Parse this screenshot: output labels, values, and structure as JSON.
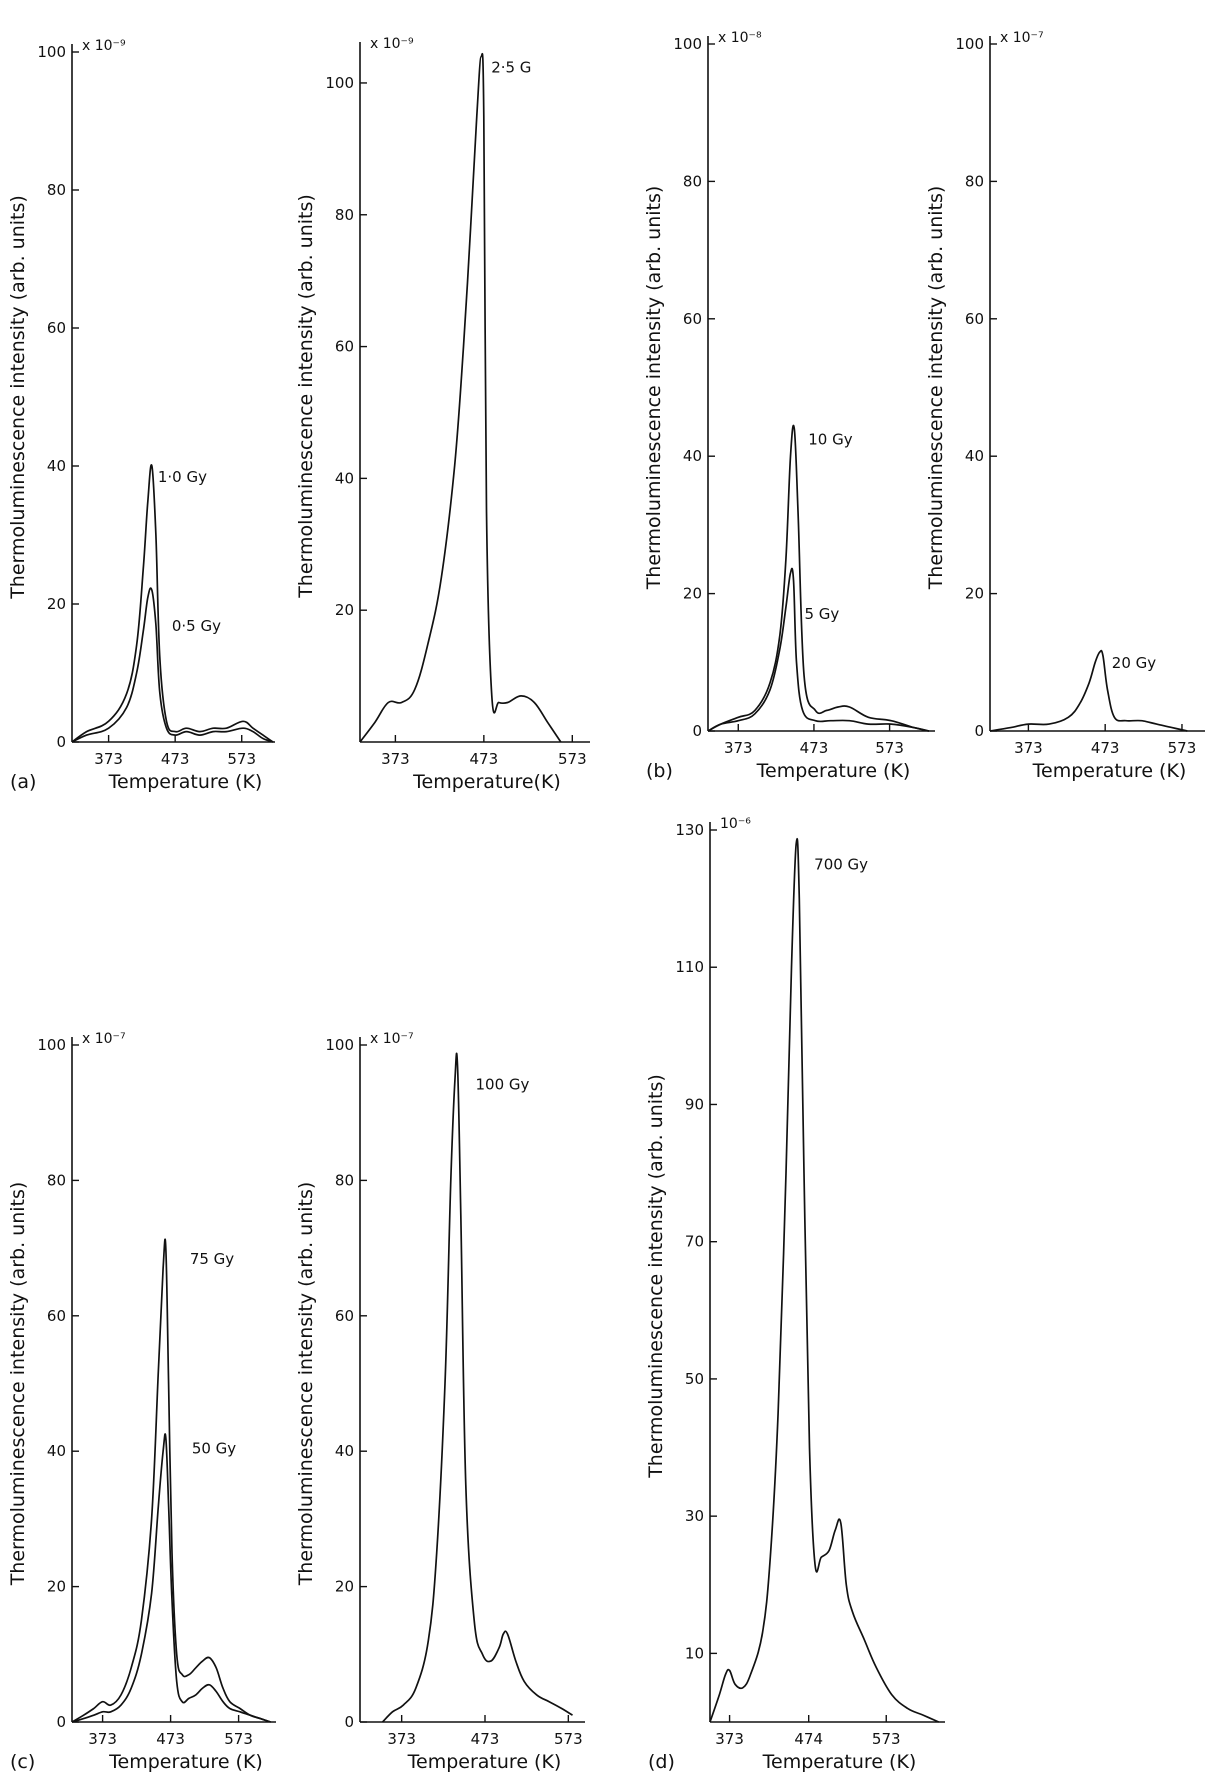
{
  "chart_data": [
    {
      "type": "line",
      "panel_label": "(a)",
      "xlabel": "Temperature (K)",
      "ylabel": "Thermoluminescence intensity (arb. units)",
      "y_multiplier": "x 10⁻⁹",
      "xlim": [
        318,
        623
      ],
      "ylim": [
        0,
        100
      ],
      "x_ticks": [
        373,
        473,
        573
      ],
      "x_tick_labels": [
        "373",
        "473",
        "573"
      ],
      "y_ticks": [
        0,
        20,
        40,
        60,
        80,
        100
      ],
      "y_tick_labels": [
        "0",
        "20",
        "40",
        "60",
        "80",
        "100"
      ],
      "series": [
        {
          "name": "1·0 Gy",
          "x": [
            318,
            340,
            373,
            400,
            415,
            425,
            432,
            438,
            444,
            450,
            460,
            473,
            490,
            510,
            530,
            550,
            575,
            590,
            605,
            620
          ],
          "y": [
            0,
            1.5,
            3,
            7,
            14,
            25,
            35,
            40,
            30,
            12,
            3,
            1.5,
            2,
            1.5,
            2,
            2,
            3,
            2,
            1,
            0
          ]
        },
        {
          "name": "0·5 Gy",
          "x": [
            318,
            340,
            373,
            400,
            415,
            425,
            432,
            438,
            444,
            450,
            460,
            473,
            490,
            510,
            530,
            550,
            575,
            590,
            605,
            620
          ],
          "y": [
            0,
            1,
            2,
            5,
            10,
            16,
            21,
            22,
            17,
            7,
            2,
            1,
            1.5,
            1,
            1.5,
            1.5,
            2,
            1.5,
            0.5,
            0
          ]
        }
      ],
      "series_labels": [
        "1·0 Gy",
        "0·5 Gy"
      ]
    },
    {
      "type": "line",
      "panel_label": "",
      "xlabel": "Temperature(K)",
      "ylabel": "Thermoluminescence intensity (arb. units)",
      "y_multiplier": "x 10⁻⁹",
      "xlim": [
        333,
        593
      ],
      "ylim": [
        0,
        105
      ],
      "x_ticks": [
        373,
        473,
        573
      ],
      "x_tick_labels": [
        "373",
        "473",
        "573"
      ],
      "y_ticks": [
        20,
        40,
        60,
        80,
        100
      ],
      "y_tick_labels": [
        "20",
        "40",
        "60",
        "80",
        "100"
      ],
      "series": [
        {
          "name": "2·5 G",
          "x": [
            333,
            350,
            365,
            380,
            395,
            410,
            425,
            440,
            450,
            458,
            465,
            470,
            473,
            476,
            482,
            490,
            500,
            515,
            530,
            545,
            560
          ],
          "y": [
            0,
            3,
            6,
            6,
            8,
            15,
            25,
            42,
            60,
            78,
            95,
            104,
            95,
            35,
            7,
            6,
            6,
            7,
            6,
            3,
            0
          ]
        }
      ],
      "series_labels": [
        "2·5 G"
      ]
    },
    {
      "type": "line",
      "panel_label": "(b)",
      "xlabel": "Temperature (K)",
      "ylabel": "Thermoluminescence intensity (arb. units)",
      "y_multiplier": "x 10⁻⁸",
      "xlim": [
        333,
        633
      ],
      "ylim": [
        0,
        100
      ],
      "x_ticks": [
        373,
        473,
        573
      ],
      "x_tick_labels": [
        "373",
        "473",
        "573"
      ],
      "y_ticks": [
        0,
        20,
        40,
        60,
        80,
        100
      ],
      "y_tick_labels": [
        "0",
        "20",
        "40",
        "60",
        "80",
        "100"
      ],
      "series": [
        {
          "name": "10 Gy",
          "x": [
            333,
            350,
            373,
            395,
            415,
            428,
            436,
            442,
            447,
            452,
            460,
            475,
            490,
            505,
            520,
            545,
            575,
            605,
            625
          ],
          "y": [
            0,
            1,
            2,
            3,
            7,
            14,
            25,
            40,
            44,
            32,
            8,
            3,
            3,
            3.5,
            3.5,
            2,
            1.5,
            0.5,
            0
          ]
        },
        {
          "name": "5 Gy",
          "x": [
            333,
            350,
            373,
            395,
            415,
            428,
            436,
            442,
            446,
            450,
            458,
            475,
            495,
            520,
            545,
            575,
            605,
            625
          ],
          "y": [
            0,
            1,
            1.5,
            2.5,
            6,
            12,
            18,
            23,
            22,
            10,
            3,
            1.5,
            1.5,
            1.5,
            1,
            1,
            0.5,
            0
          ]
        }
      ],
      "series_labels": [
        "10 Gy",
        "5 Gy"
      ]
    },
    {
      "type": "line",
      "panel_label": "",
      "xlabel": "Temperature (K)",
      "ylabel": "Thermoluminescence intensity (arb. units)",
      "y_multiplier": "x 10⁻⁷",
      "xlim": [
        323,
        603
      ],
      "ylim": [
        0,
        100
      ],
      "x_ticks": [
        373,
        473,
        573
      ],
      "x_tick_labels": [
        "373",
        "473",
        "573"
      ],
      "y_ticks": [
        0,
        20,
        40,
        60,
        80,
        100
      ],
      "y_tick_labels": [
        "0",
        "20",
        "40",
        "60",
        "80",
        "100"
      ],
      "series": [
        {
          "name": "20 Gy",
          "x": [
            323,
            350,
            373,
            400,
            425,
            440,
            452,
            460,
            466,
            470,
            476,
            485,
            500,
            520,
            540,
            560,
            580
          ],
          "y": [
            0,
            0.5,
            1,
            1,
            2,
            4,
            7,
            10,
            11.5,
            11,
            6,
            2,
            1.5,
            1.5,
            1,
            0.5,
            0
          ]
        }
      ],
      "series_labels": [
        "20 Gy"
      ]
    },
    {
      "type": "line",
      "panel_label": "(c)",
      "xlabel": "Temperature (K)",
      "ylabel": "Thermoluminescence intensity (arb. units)",
      "y_multiplier": "x 10⁻⁷",
      "xlim": [
        328,
        628
      ],
      "ylim": [
        0,
        100
      ],
      "x_ticks": [
        373,
        473,
        573
      ],
      "x_tick_labels": [
        "373",
        "473",
        "573"
      ],
      "y_ticks": [
        0,
        20,
        40,
        60,
        80,
        100
      ],
      "y_tick_labels": [
        "0",
        "20",
        "40",
        "60",
        "80",
        "100"
      ],
      "series": [
        {
          "name": "75 Gy",
          "x": [
            328,
            345,
            360,
            373,
            385,
            400,
            415,
            430,
            445,
            455,
            462,
            466,
            470,
            475,
            482,
            490,
            500,
            510,
            520,
            530,
            540,
            550,
            560,
            575,
            590,
            605,
            620
          ],
          "y": [
            0,
            1,
            2,
            3,
            2.5,
            4,
            8,
            15,
            30,
            52,
            67,
            70,
            50,
            25,
            10,
            7,
            7,
            8,
            9,
            9.5,
            8,
            5,
            3,
            2,
            1,
            0.5,
            0
          ]
        },
        {
          "name": "50 Gy",
          "x": [
            328,
            345,
            360,
            373,
            385,
            400,
            415,
            430,
            445,
            455,
            462,
            466,
            470,
            475,
            482,
            490,
            500,
            510,
            520,
            530,
            540,
            550,
            560,
            575,
            590,
            605,
            620
          ],
          "y": [
            0,
            0.5,
            1,
            1.5,
            1.5,
            2.5,
            5,
            10,
            19,
            32,
            40,
            42,
            32,
            18,
            6,
            3,
            3.5,
            4,
            5,
            5.5,
            4.5,
            3,
            2,
            1.5,
            1,
            0.5,
            0
          ]
        }
      ],
      "series_labels": [
        "75 Gy",
        "50 Gy"
      ]
    },
    {
      "type": "line",
      "panel_label": "",
      "xlabel": "Temperature (K)",
      "ylabel": "Thermoluminescence intensity (arb. units)",
      "y_multiplier": "x 10⁻⁷",
      "xlim": [
        323,
        593
      ],
      "ylim": [
        0,
        100
      ],
      "x_ticks": [
        373,
        473,
        573
      ],
      "x_tick_labels": [
        "373",
        "473",
        "573"
      ],
      "y_ticks": [
        0,
        20,
        40,
        60,
        80,
        100
      ],
      "y_tick_labels": [
        "0",
        "20",
        "40",
        "60",
        "80",
        "100"
      ],
      "series": [
        {
          "name": "100 Gy",
          "x": [
            350,
            362,
            375,
            390,
            405,
            415,
            425,
            432,
            437,
            440,
            444,
            450,
            460,
            470,
            480,
            490,
            495,
            500,
            510,
            520,
            535,
            550,
            565,
            578
          ],
          "y": [
            0,
            1.5,
            2.5,
            5,
            12,
            25,
            50,
            80,
            95,
            97,
            75,
            35,
            15,
            10,
            9,
            11,
            13,
            13,
            9,
            6,
            4,
            3,
            2,
            1
          ]
        }
      ],
      "series_labels": [
        "100 Gy"
      ]
    },
    {
      "type": "line",
      "panel_label": "(d)",
      "xlabel": "Temperature (K)",
      "ylabel": "Thermoluminescence intensity (arb. units)",
      "y_multiplier": "10⁻⁶",
      "xlim": [
        348,
        648
      ],
      "ylim": [
        0,
        130
      ],
      "x_ticks": [
        373,
        474,
        573
      ],
      "x_tick_labels": [
        "373",
        "474",
        "573"
      ],
      "y_ticks": [
        10,
        30,
        50,
        70,
        90,
        110,
        130
      ],
      "y_tick_labels": [
        "10",
        "30",
        "50",
        "70",
        "90",
        "110",
        "130"
      ],
      "series": [
        {
          "name": "700 Gy",
          "x": [
            348,
            360,
            368,
            373,
            380,
            390,
            400,
            415,
            425,
            435,
            445,
            452,
            458,
            462,
            468,
            475,
            482,
            490,
            500,
            508,
            515,
            522,
            530,
            545,
            560,
            580,
            600,
            620,
            640
          ],
          "y": [
            0,
            4,
            7,
            7.5,
            5.5,
            5,
            7,
            13,
            24,
            45,
            80,
            110,
            128,
            120,
            80,
            40,
            23,
            24,
            25,
            28,
            29,
            20,
            16,
            12,
            8,
            4,
            2,
            1,
            0
          ]
        }
      ],
      "series_labels": [
        "700 Gy"
      ]
    }
  ]
}
